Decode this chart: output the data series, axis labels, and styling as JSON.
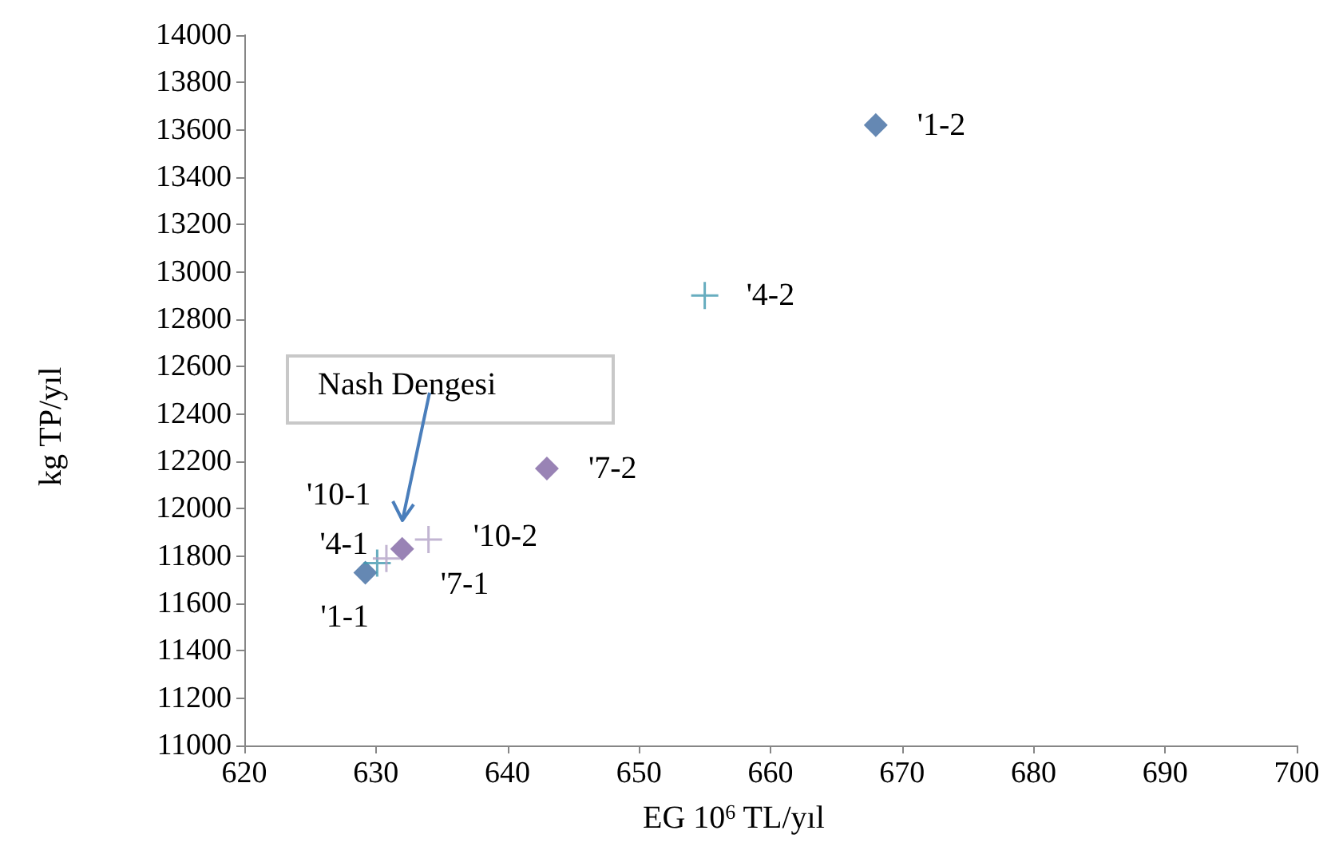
{
  "chart_data": {
    "type": "scatter",
    "xlabel": "EG 10$^{6}$ TL/yıl",
    "ylabel": "kg TP/yıl",
    "series": [
      {
        "color": "#3e6aa0",
        "marker": "diamond",
        "x": [
          629.2,
          668
        ],
        "values": [
          11730,
          13620
        ]
      },
      {
        "color": "#4198af",
        "marker": "cross",
        "x": [
          630.1,
          655
        ],
        "values": [
          11770,
          12900
        ]
      },
      {
        "color": "#8064a2",
        "marker": "diamond",
        "x": [
          632,
          643
        ],
        "values": [
          11830,
          12170
        ]
      },
      {
        "color": "#b3a2c7",
        "marker": "cross",
        "x": [
          630.8,
          634
        ],
        "values": [
          11790,
          11870
        ]
      }
    ],
    "annotations": [
      {
        "text": "'1-1",
        "x": 629.2,
        "y": 11730
      },
      {
        "text": "'1-2",
        "x": 668,
        "y": 13620
      },
      {
        "text": "'4-1",
        "x": 630.1,
        "y": 11770
      },
      {
        "text": "'4-2",
        "x": 655,
        "y": 12900
      },
      {
        "text": "'7-1",
        "x": 632,
        "y": 11830
      },
      {
        "text": "'7-2",
        "x": 643,
        "y": 12170
      },
      {
        "text": "'10-1",
        "x": 630.8,
        "y": 11790
      },
      {
        "text": "'10-2",
        "x": 634,
        "y": 11870
      },
      "Nash Dengesi"
    ],
    "xlim": [
      620,
      700
    ],
    "xticks": [
      620,
      630,
      640,
      650,
      660,
      670,
      680,
      690,
      700
    ],
    "ylim": [
      11000,
      14000
    ],
    "yticks": [
      11000,
      11200,
      11400,
      11600,
      11800,
      12000,
      12200,
      12400,
      12600,
      12800,
      13000,
      13200,
      13400,
      13600,
      13800,
      14000
    ],
    "grid": false
  }
}
